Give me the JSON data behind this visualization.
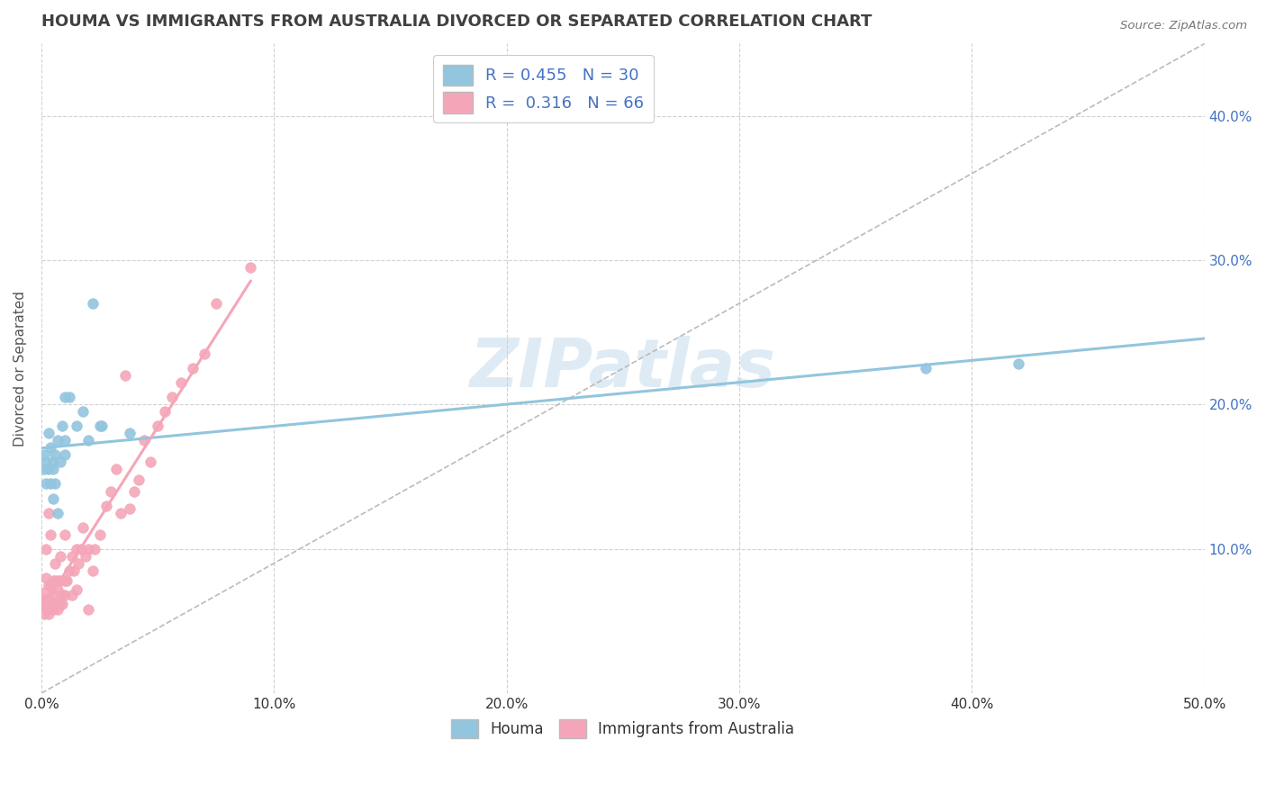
{
  "title": "HOUMA VS IMMIGRANTS FROM AUSTRALIA DIVORCED OR SEPARATED CORRELATION CHART",
  "source": "Source: ZipAtlas.com",
  "ylabel": "Divorced or Separated",
  "x_min": 0.0,
  "x_max": 0.5,
  "y_min": 0.0,
  "y_max": 0.45,
  "x_ticks": [
    0.0,
    0.1,
    0.2,
    0.3,
    0.4,
    0.5
  ],
  "x_tick_labels": [
    "0.0%",
    "10.0%",
    "20.0%",
    "30.0%",
    "40.0%",
    "50.0%"
  ],
  "y_ticks": [
    0.0,
    0.1,
    0.2,
    0.3,
    0.4
  ],
  "y_tick_labels": [
    "",
    "10.0%",
    "20.0%",
    "30.0%",
    "40.0%"
  ],
  "houma_color": "#92C5DE",
  "immigrants_color": "#F4A6B8",
  "houma_R": 0.455,
  "houma_N": 30,
  "immigrants_R": 0.316,
  "immigrants_N": 66,
  "legend_labels": [
    "Houma",
    "Immigrants from Australia"
  ],
  "watermark": "ZIPatlas",
  "houma_scatter_x": [
    0.001,
    0.001,
    0.002,
    0.002,
    0.003,
    0.003,
    0.004,
    0.004,
    0.005,
    0.005,
    0.005,
    0.006,
    0.006,
    0.007,
    0.007,
    0.008,
    0.009,
    0.01,
    0.01,
    0.01,
    0.012,
    0.015,
    0.018,
    0.02,
    0.022,
    0.025,
    0.026,
    0.038,
    0.38,
    0.42
  ],
  "houma_scatter_y": [
    0.155,
    0.165,
    0.145,
    0.16,
    0.155,
    0.18,
    0.145,
    0.17,
    0.135,
    0.155,
    0.16,
    0.145,
    0.165,
    0.125,
    0.175,
    0.16,
    0.185,
    0.175,
    0.205,
    0.165,
    0.205,
    0.185,
    0.195,
    0.175,
    0.27,
    0.185,
    0.185,
    0.18,
    0.225,
    0.228
  ],
  "immigrants_scatter_x": [
    0.0,
    0.0,
    0.001,
    0.001,
    0.002,
    0.002,
    0.002,
    0.003,
    0.003,
    0.003,
    0.003,
    0.004,
    0.004,
    0.004,
    0.005,
    0.005,
    0.005,
    0.006,
    0.006,
    0.006,
    0.007,
    0.007,
    0.007,
    0.007,
    0.008,
    0.008,
    0.008,
    0.009,
    0.009,
    0.01,
    0.01,
    0.01,
    0.011,
    0.012,
    0.013,
    0.013,
    0.014,
    0.015,
    0.015,
    0.016,
    0.017,
    0.018,
    0.019,
    0.02,
    0.02,
    0.022,
    0.023,
    0.025,
    0.028,
    0.03,
    0.032,
    0.034,
    0.036,
    0.038,
    0.04,
    0.042,
    0.044,
    0.047,
    0.05,
    0.053,
    0.056,
    0.06,
    0.065,
    0.07,
    0.075,
    0.09
  ],
  "immigrants_scatter_y": [
    0.06,
    0.065,
    0.055,
    0.07,
    0.065,
    0.08,
    0.1,
    0.055,
    0.065,
    0.075,
    0.125,
    0.06,
    0.075,
    0.11,
    0.058,
    0.068,
    0.078,
    0.062,
    0.078,
    0.09,
    0.058,
    0.063,
    0.072,
    0.078,
    0.062,
    0.078,
    0.095,
    0.062,
    0.068,
    0.068,
    0.078,
    0.11,
    0.078,
    0.085,
    0.068,
    0.095,
    0.085,
    0.072,
    0.1,
    0.09,
    0.1,
    0.115,
    0.095,
    0.058,
    0.1,
    0.085,
    0.1,
    0.11,
    0.13,
    0.14,
    0.155,
    0.125,
    0.22,
    0.128,
    0.14,
    0.148,
    0.175,
    0.16,
    0.185,
    0.195,
    0.205,
    0.215,
    0.225,
    0.235,
    0.27,
    0.295
  ],
  "background_color": "#FFFFFF",
  "grid_color": "#CCCCCC",
  "title_color": "#404040",
  "axis_label_color": "#555555",
  "blue_text_color": "#4472C4"
}
